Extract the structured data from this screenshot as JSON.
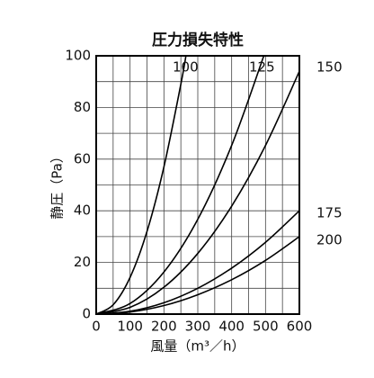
{
  "chart_data": {
    "type": "line",
    "title": "圧力損失特性",
    "xlabel": "風量（m³／h）",
    "ylabel": "静圧（Pa）",
    "xlim": [
      0,
      600
    ],
    "ylim": [
      0,
      100
    ],
    "xticks": [
      0,
      100,
      200,
      300,
      400,
      500,
      600
    ],
    "yticks": [
      0,
      20,
      40,
      60,
      80,
      100
    ],
    "grid": true,
    "series": [
      {
        "name": "100",
        "color": "#000000",
        "x": [
          0,
          50,
          100,
          150,
          200,
          250,
          265
        ],
        "values": [
          0,
          3.6,
          14.2,
          32,
          57,
          89,
          100
        ]
      },
      {
        "name": "125",
        "color": "#000000",
        "x": [
          0,
          100,
          200,
          300,
          400,
          495
        ],
        "values": [
          0,
          4.1,
          16.3,
          36.7,
          65.3,
          100
        ]
      },
      {
        "name": "150",
        "color": "#000000",
        "x": [
          0,
          100,
          200,
          300,
          400,
          500,
          600
        ],
        "values": [
          0,
          2.6,
          10.4,
          23.5,
          41.8,
          65.3,
          94
        ]
      },
      {
        "name": "175",
        "color": "#000000",
        "x": [
          0,
          100,
          200,
          300,
          400,
          500,
          600
        ],
        "values": [
          0,
          1.1,
          4.4,
          10,
          17.8,
          27.8,
          40
        ]
      },
      {
        "name": "200",
        "color": "#000000",
        "x": [
          0,
          100,
          200,
          300,
          400,
          500,
          600
        ],
        "values": [
          0,
          0.8,
          3.3,
          7.5,
          13.3,
          20.8,
          30
        ]
      }
    ]
  }
}
